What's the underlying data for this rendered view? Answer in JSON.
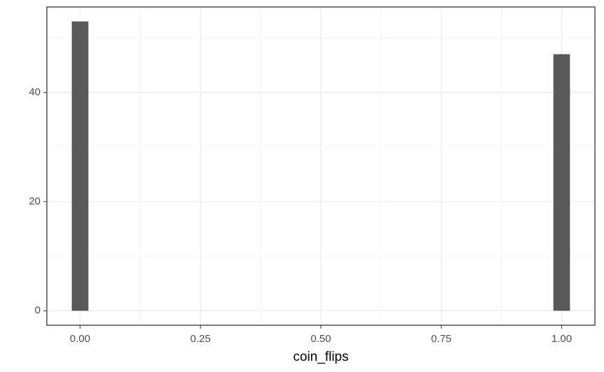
{
  "chart_data": {
    "type": "histogram",
    "x_label": "coin_flips",
    "bins": [
      -0.017241,
      0.017241,
      0.051724,
      0.086207,
      0.12069,
      0.155172,
      0.189655,
      0.224138,
      0.258621,
      0.293103,
      0.327586,
      0.362069,
      0.396552,
      0.431034,
      0.465517,
      0.5,
      0.534483,
      0.568966,
      0.603448,
      0.637931,
      0.672414,
      0.706897,
      0.741379,
      0.775862,
      0.810345,
      0.844828,
      0.87931,
      0.913793,
      0.948276,
      0.982759,
      1.017241
    ],
    "values": [
      53,
      0,
      0,
      0,
      0,
      0,
      0,
      0,
      0,
      0,
      0,
      0,
      0,
      0,
      0,
      0,
      0,
      0,
      0,
      0,
      0,
      0,
      0,
      0,
      0,
      0,
      0,
      0,
      0,
      47
    ],
    "color": "#595959",
    "xlim": [
      -0.069,
      1.069
    ],
    "ylim": [
      -2.65,
      55.65
    ],
    "xticks": [
      {
        "value": 0,
        "label": "0.00"
      },
      {
        "value": 0.25,
        "label": "0.25"
      },
      {
        "value": 0.5,
        "label": "0.50"
      },
      {
        "value": 0.75,
        "label": "0.75"
      },
      {
        "value": 1,
        "label": "1.00"
      }
    ],
    "yticks": [
      0,
      20,
      40
    ],
    "x_minor_grid": [
      0.125,
      0.375,
      0.625,
      0.875
    ],
    "y_minor_grid": [
      10,
      30,
      50
    ],
    "grid": true
  }
}
